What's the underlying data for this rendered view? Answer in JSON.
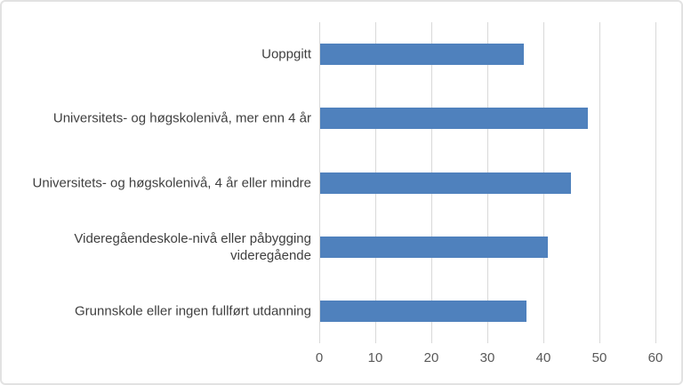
{
  "chart_data": {
    "type": "bar",
    "orientation": "horizontal",
    "title": "",
    "xlabel": "",
    "ylabel": "",
    "categories": [
      "Uoppgitt",
      "Universitets- og høgskolenivå, mer enn 4 år",
      "Universitets- og høgskolenivå, 4 år eller mindre",
      "Videregåendeskole-nivå eller påbygging videregående",
      "Grunnskole eller ingen fullført utdanning"
    ],
    "category_display_lines": [
      [
        "Uoppgitt"
      ],
      [
        "Universitets- og høgskolenivå, mer enn 4 år"
      ],
      [
        "Universitets- og høgskolenivå, 4 år eller mindre"
      ],
      [
        "Videregåendeskole-nivå eller påbygging",
        "videregående"
      ],
      [
        "Grunnskole eller ingen fullført utdanning"
      ]
    ],
    "values": [
      36.4,
      47.7,
      44.7,
      40.7,
      36.9
    ],
    "xlim": [
      0,
      60
    ],
    "xticks": [
      0,
      10,
      20,
      30,
      40,
      50,
      60
    ],
    "grid": true,
    "legend": false,
    "colors": {
      "bar": "#4f81bd",
      "gridline": "#d9d9d9",
      "tick_label": "#595959",
      "category_label": "#3f3f3f",
      "frame_border": "#e2e2e2",
      "background": "#ffffff"
    }
  }
}
